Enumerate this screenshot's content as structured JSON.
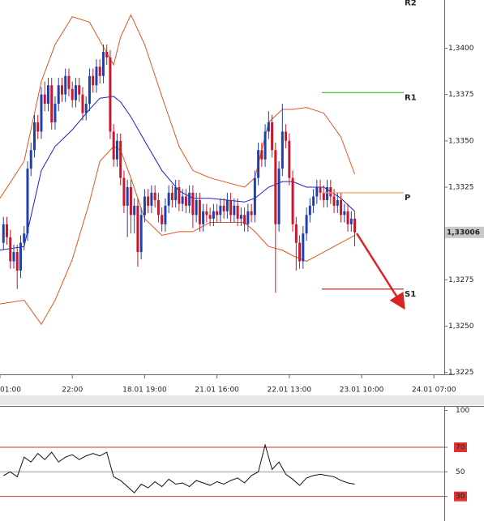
{
  "chart_data": [
    {
      "type": "candlestick",
      "x": [
        1,
        2,
        3,
        4,
        5,
        6,
        7,
        8,
        9,
        10,
        11,
        12,
        13,
        14,
        15,
        16,
        17,
        18,
        19,
        20,
        21,
        22,
        23,
        24,
        25,
        26,
        27,
        28,
        29,
        30,
        31,
        32,
        33,
        34,
        35,
        36,
        37,
        38,
        39,
        40,
        41,
        42,
        43,
        44,
        45,
        46,
        47,
        48,
        49,
        50,
        51,
        52,
        53,
        54,
        55,
        56,
        57,
        58,
        59,
        60,
        61,
        62,
        63,
        64,
        65,
        66,
        67,
        68,
        69,
        70,
        71,
        72,
        73,
        74,
        75,
        76,
        77,
        78,
        79,
        80,
        81,
        82,
        83,
        84,
        85,
        86,
        87,
        88,
        89,
        90,
        91,
        92,
        93,
        94,
        95,
        96,
        97,
        98,
        99,
        100,
        101,
        102,
        103
      ],
      "open": [
        1.3295,
        1.3305,
        1.3298,
        1.3285,
        1.329,
        1.328,
        1.3295,
        1.33,
        1.3335,
        1.3345,
        1.336,
        1.3355,
        1.3375,
        1.337,
        1.338,
        1.336,
        1.337,
        1.338,
        1.3375,
        1.3385,
        1.3378,
        1.3372,
        1.338,
        1.3375,
        1.3365,
        1.337,
        1.3385,
        1.338,
        1.339,
        1.3385,
        1.3398,
        1.3395,
        1.3355,
        1.334,
        1.335,
        1.333,
        1.3315,
        1.3325,
        1.331,
        1.3315,
        1.329,
        1.331,
        1.332,
        1.3315,
        1.3322,
        1.3318,
        1.331,
        1.3305,
        1.3315,
        1.3322,
        1.3318,
        1.3325,
        1.3316,
        1.332,
        1.3315,
        1.3322,
        1.331,
        1.3318,
        1.3305,
        1.3312,
        1.331,
        1.3308,
        1.3312,
        1.331,
        1.3315,
        1.3312,
        1.3318,
        1.331,
        1.3315,
        1.3308,
        1.331,
        1.3305,
        1.3312,
        1.331,
        1.333,
        1.3345,
        1.334,
        1.3355,
        1.336,
        1.3345,
        1.3305,
        1.3335,
        1.3355,
        1.335,
        1.333,
        1.3305,
        1.3295,
        1.3285,
        1.33,
        1.331,
        1.3315,
        1.332,
        1.3325,
        1.3322,
        1.3318,
        1.3325,
        1.332,
        1.3315,
        1.3318,
        1.331,
        1.3312,
        1.3305,
        1.3308
      ],
      "high": [
        1.3309,
        1.3309,
        1.3302,
        1.3294,
        1.3294,
        1.3299,
        1.3304,
        1.3339,
        1.3349,
        1.3364,
        1.3364,
        1.3379,
        1.3382,
        1.3384,
        1.3384,
        1.3374,
        1.3384,
        1.3384,
        1.3389,
        1.3389,
        1.3382,
        1.3384,
        1.3384,
        1.3379,
        1.3374,
        1.3389,
        1.3389,
        1.3394,
        1.3394,
        1.3402,
        1.3402,
        1.3399,
        1.3359,
        1.3354,
        1.3354,
        1.3334,
        1.3329,
        1.3329,
        1.3319,
        1.3319,
        1.3314,
        1.3324,
        1.3324,
        1.3326,
        1.3326,
        1.3322,
        1.3314,
        1.3319,
        1.3326,
        1.3326,
        1.3329,
        1.3329,
        1.3324,
        1.3324,
        1.3326,
        1.3326,
        1.3322,
        1.3322,
        1.3316,
        1.3316,
        1.3314,
        1.3316,
        1.3316,
        1.3319,
        1.3319,
        1.3322,
        1.3322,
        1.3319,
        1.3319,
        1.3314,
        1.3314,
        1.3316,
        1.3316,
        1.3334,
        1.3349,
        1.3349,
        1.3359,
        1.3366,
        1.3364,
        1.3349,
        1.3339,
        1.337,
        1.3359,
        1.3354,
        1.3334,
        1.3309,
        1.3299,
        1.3304,
        1.3314,
        1.3319,
        1.3324,
        1.3329,
        1.3329,
        1.3326,
        1.3329,
        1.3329,
        1.3324,
        1.3322,
        1.3322,
        1.3316,
        1.3316,
        1.3312,
        1.3312
      ],
      "low": [
        1.3291,
        1.3294,
        1.3281,
        1.3281,
        1.327,
        1.3276,
        1.3291,
        1.3296,
        1.3331,
        1.3341,
        1.3351,
        1.3351,
        1.3366,
        1.3366,
        1.3356,
        1.3356,
        1.3366,
        1.3371,
        1.3371,
        1.3374,
        1.3368,
        1.3368,
        1.3371,
        1.3361,
        1.3361,
        1.3366,
        1.3376,
        1.3376,
        1.3381,
        1.3381,
        1.3391,
        1.3351,
        1.3336,
        1.3336,
        1.3326,
        1.3311,
        1.3298,
        1.33,
        1.33,
        1.3282,
        1.3286,
        1.3306,
        1.3311,
        1.3311,
        1.3314,
        1.3306,
        1.3301,
        1.3301,
        1.3311,
        1.3314,
        1.3314,
        1.3312,
        1.3312,
        1.3311,
        1.3311,
        1.3303,
        1.3306,
        1.3301,
        1.3301,
        1.3306,
        1.3304,
        1.3304,
        1.3306,
        1.3306,
        1.3308,
        1.3308,
        1.3306,
        1.3306,
        1.3304,
        1.3304,
        1.3301,
        1.3301,
        1.3306,
        1.3306,
        1.3326,
        1.3336,
        1.3336,
        1.3351,
        1.3341,
        1.3268,
        1.3301,
        1.3331,
        1.3346,
        1.3326,
        1.3301,
        1.328,
        1.3281,
        1.3281,
        1.3296,
        1.3306,
        1.3311,
        1.3316,
        1.3318,
        1.3314,
        1.3314,
        1.3316,
        1.3311,
        1.3311,
        1.3306,
        1.3306,
        1.3301,
        1.3301,
        1.3293
      ],
      "close": [
        1.3305,
        1.3298,
        1.3285,
        1.329,
        1.328,
        1.3295,
        1.33,
        1.3335,
        1.3345,
        1.336,
        1.3355,
        1.3375,
        1.337,
        1.338,
        1.336,
        1.337,
        1.338,
        1.3375,
        1.3385,
        1.3378,
        1.3372,
        1.338,
        1.3375,
        1.3365,
        1.337,
        1.3385,
        1.338,
        1.339,
        1.3385,
        1.3398,
        1.3395,
        1.3355,
        1.334,
        1.335,
        1.333,
        1.3315,
        1.3325,
        1.331,
        1.3315,
        1.329,
        1.331,
        1.332,
        1.3315,
        1.3322,
        1.3318,
        1.331,
        1.3305,
        1.3315,
        1.3322,
        1.3318,
        1.3325,
        1.3316,
        1.332,
        1.3315,
        1.3322,
        1.331,
        1.3318,
        1.3305,
        1.3312,
        1.331,
        1.3308,
        1.3312,
        1.331,
        1.3315,
        1.3312,
        1.3318,
        1.331,
        1.3315,
        1.3308,
        1.331,
        1.3305,
        1.3312,
        1.331,
        1.333,
        1.3345,
        1.334,
        1.3355,
        1.336,
        1.3345,
        1.3305,
        1.3335,
        1.3355,
        1.335,
        1.333,
        1.3305,
        1.3295,
        1.3285,
        1.33,
        1.331,
        1.3315,
        1.332,
        1.3325,
        1.3322,
        1.3318,
        1.3325,
        1.332,
        1.3315,
        1.3318,
        1.331,
        1.3312,
        1.3305,
        1.3308,
        1.33006
      ],
      "up_color": "#1f3fae",
      "down_color": "#c8162a",
      "bands": {
        "x": [
          0,
          7,
          12,
          16,
          21,
          26,
          29,
          33,
          35,
          38,
          42,
          47,
          52,
          56,
          61,
          71,
          74,
          78,
          82,
          85,
          89,
          94,
          99,
          103
        ],
        "upper": [
          1.3319,
          1.3339,
          1.3382,
          1.3402,
          1.3417,
          1.3414,
          1.3404,
          1.3391,
          1.3406,
          1.3418,
          1.3402,
          1.3374,
          1.3347,
          1.3334,
          1.333,
          1.3325,
          1.333,
          1.336,
          1.3367,
          1.3367,
          1.3368,
          1.3365,
          1.3352,
          1.3332
        ],
        "middle": [
          1.3291,
          1.3293,
          1.3334,
          1.3347,
          1.3356,
          1.3367,
          1.3373,
          1.3374,
          1.3371,
          1.3363,
          1.335,
          1.3334,
          1.3323,
          1.3319,
          1.3319,
          1.3317,
          1.3319,
          1.3325,
          1.3328,
          1.3328,
          1.3325,
          1.3325,
          1.3319,
          1.3312
        ],
        "lower": [
          1.3262,
          1.3264,
          1.3251,
          1.3264,
          1.3286,
          1.3317,
          1.3339,
          1.3347,
          1.3345,
          1.333,
          1.3308,
          1.3299,
          1.3301,
          1.3301,
          1.3306,
          1.3306,
          1.3301,
          1.3293,
          1.3291,
          1.3288,
          1.3285,
          1.329,
          1.3295,
          1.3299
        ],
        "band_color": "#e0561c",
        "middle_color": "#1c1cc8"
      },
      "levels": [
        {
          "label": "R2",
          "value": 1.3427,
          "color": "#33cc33"
        },
        {
          "label": "R1",
          "value": 1.3376,
          "color": "#33cc33"
        },
        {
          "label": "P",
          "value": 1.3322,
          "color": "#f0a060"
        },
        {
          "label": "S1",
          "value": 1.327,
          "color": "#b01010"
        }
      ],
      "last_price": {
        "value": 1.33006,
        "label": "1,33006"
      },
      "xlim": [
        0,
        129
      ],
      "xticks": [
        {
          "value": 0,
          "label": "01:00"
        },
        {
          "value": 21,
          "label": "22:00"
        },
        {
          "value": 42,
          "label": "18.01 19:00"
        },
        {
          "value": 63,
          "label": "21.01 16:00"
        },
        {
          "value": 84,
          "label": "22.01 13:00"
        },
        {
          "value": 105,
          "label": "23.01 10:00"
        },
        {
          "value": 126,
          "label": "24.01 07:00"
        }
      ],
      "ylim": [
        1.3224,
        1.3426
      ],
      "yticks": [
        {
          "value": 1.34,
          "label": "1,3400"
        },
        {
          "value": 1.3375,
          "label": "1,3375"
        },
        {
          "value": 1.335,
          "label": "1,3350"
        },
        {
          "value": 1.3325,
          "label": "1,3325"
        },
        {
          "value": 1.33,
          "label": "1,3300"
        },
        {
          "value": 1.3275,
          "label": "1,3275"
        },
        {
          "value": 1.325,
          "label": "1,3250"
        },
        {
          "value": 1.3225,
          "label": "1,3225"
        }
      ]
    },
    {
      "type": "line",
      "x": [
        1,
        3,
        5,
        7,
        9,
        11,
        13,
        15,
        17,
        19,
        21,
        23,
        25,
        27,
        29,
        31,
        33,
        35,
        37,
        39,
        41,
        43,
        45,
        47,
        49,
        51,
        53,
        55,
        57,
        59,
        61,
        63,
        65,
        67,
        69,
        71,
        73,
        75,
        77,
        79,
        81,
        83,
        85,
        87,
        89,
        91,
        93,
        95,
        97,
        99,
        101,
        103
      ],
      "values": [
        47,
        50,
        46,
        62,
        58,
        65,
        60,
        66,
        58,
        62,
        64,
        60,
        63,
        65,
        63,
        66,
        46,
        43,
        38,
        33,
        40,
        37,
        42,
        38,
        44,
        40,
        41,
        38,
        43,
        41,
        39,
        42,
        40,
        43,
        45,
        41,
        47,
        50,
        72,
        52,
        58,
        48,
        44,
        39,
        45,
        47,
        48,
        47,
        46,
        43,
        41,
        40
      ],
      "color": "#111111",
      "xlim": [
        0,
        129
      ],
      "ylim": [
        10,
        103
      ],
      "yticks": [
        100,
        70,
        50,
        30
      ],
      "reference_lines": [
        {
          "value": 70,
          "color": "#cc3333",
          "label_bg": "#dd3333"
        },
        {
          "value": 50,
          "color": "#999999"
        },
        {
          "value": 30,
          "color": "#cc3333",
          "label_bg": "#dd3333"
        }
      ]
    }
  ]
}
